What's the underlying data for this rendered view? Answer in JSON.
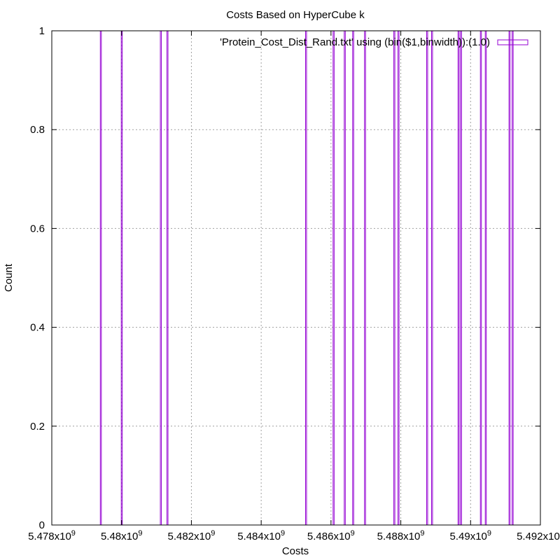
{
  "chart_data": {
    "type": "bar",
    "title": "Costs Based on HyperCube k",
    "xlabel": "Costs",
    "ylabel": "Count",
    "xlim": [
      5478000000,
      5492000000
    ],
    "ylim": [
      0,
      1
    ],
    "x_ticks": [
      {
        "value": 5478000000,
        "mantissa": "5.478x10",
        "exp": "9"
      },
      {
        "value": 5480000000,
        "mantissa": "5.48x10",
        "exp": "9"
      },
      {
        "value": 5482000000,
        "mantissa": "5.482x10",
        "exp": "9"
      },
      {
        "value": 5484000000,
        "mantissa": "5.484x10",
        "exp": "9"
      },
      {
        "value": 5486000000,
        "mantissa": "5.486x10",
        "exp": "9"
      },
      {
        "value": 5488000000,
        "mantissa": "5.488x10",
        "exp": "9"
      },
      {
        "value": 5490000000,
        "mantissa": "5.49x10",
        "exp": "9"
      },
      {
        "value": 5492000000,
        "mantissa": "5.492x10",
        "exp": "9"
      }
    ],
    "y_ticks": [
      {
        "value": 0,
        "label": "0"
      },
      {
        "value": 0.2,
        "label": "0.2"
      },
      {
        "value": 0.4,
        "label": "0.4"
      },
      {
        "value": 0.6,
        "label": "0.6"
      },
      {
        "value": 0.8,
        "label": "0.8"
      },
      {
        "value": 1,
        "label": "1"
      }
    ],
    "grid": true,
    "legend": {
      "position": "top-right",
      "label": "'Protein_Cost_Dist_Rand.txt' using (bin($1,binwidth)):(1.0)"
    },
    "series_color": "#9400d3",
    "bars": [
      {
        "x0": 5479390000,
        "x1": 5479420000,
        "value": 1
      },
      {
        "x0": 5479990000,
        "x1": 5480020000,
        "value": 1
      },
      {
        "x0": 5481110000,
        "x1": 5481140000,
        "value": 1
      },
      {
        "x0": 5481300000,
        "x1": 5481330000,
        "value": 1
      },
      {
        "x0": 5485270000,
        "x1": 5485300000,
        "value": 1
      },
      {
        "x0": 5486060000,
        "x1": 5486090000,
        "value": 1
      },
      {
        "x0": 5486380000,
        "x1": 5486410000,
        "value": 1
      },
      {
        "x0": 5486620000,
        "x1": 5486650000,
        "value": 1
      },
      {
        "x0": 5486960000,
        "x1": 5486990000,
        "value": 1
      },
      {
        "x0": 5487800000,
        "x1": 5487830000,
        "value": 1
      },
      {
        "x0": 5487920000,
        "x1": 5487950000,
        "value": 1
      },
      {
        "x0": 5488740000,
        "x1": 5488770000,
        "value": 1
      },
      {
        "x0": 5488880000,
        "x1": 5488910000,
        "value": 1
      },
      {
        "x0": 5489640000,
        "x1": 5489670000,
        "value": 1
      },
      {
        "x0": 5489710000,
        "x1": 5489740000,
        "value": 1
      },
      {
        "x0": 5490280000,
        "x1": 5490310000,
        "value": 1
      },
      {
        "x0": 5490420000,
        "x1": 5490450000,
        "value": 1
      },
      {
        "x0": 5491100000,
        "x1": 5491130000,
        "value": 1
      },
      {
        "x0": 5491190000,
        "x1": 5491220000,
        "value": 1
      }
    ]
  }
}
